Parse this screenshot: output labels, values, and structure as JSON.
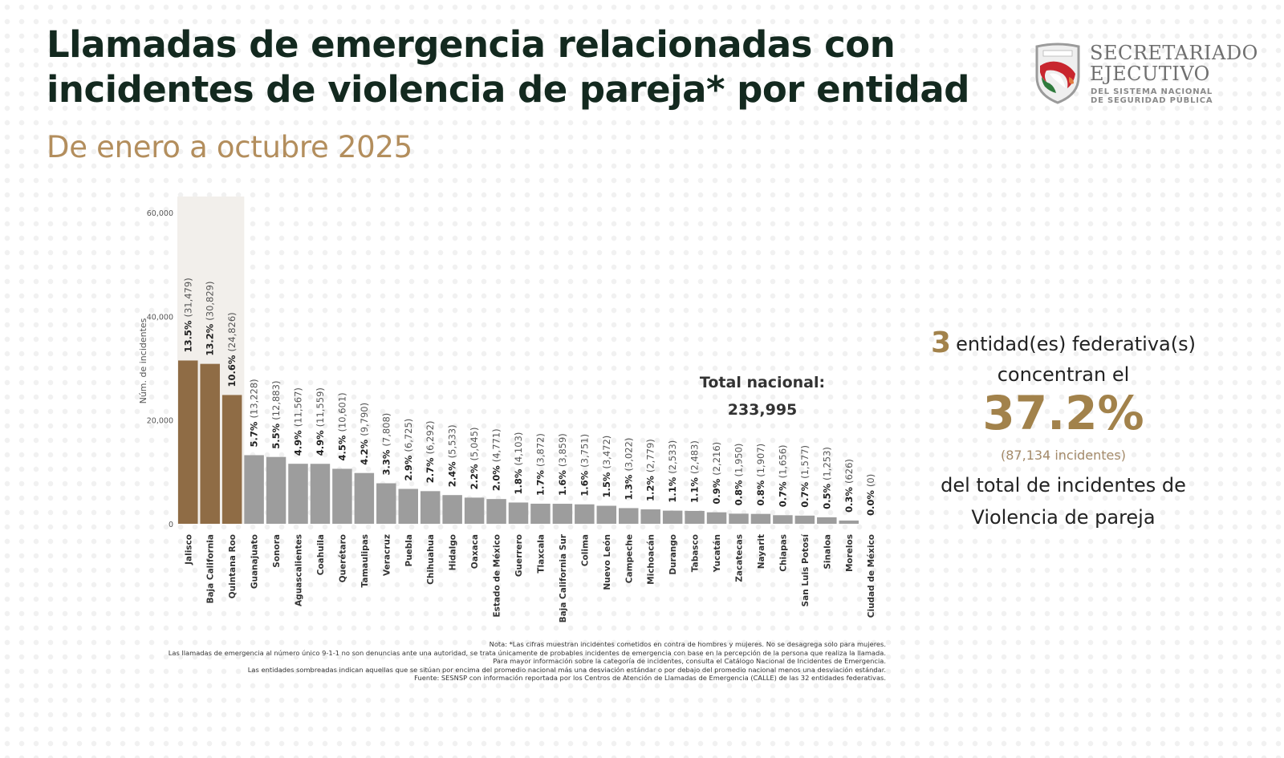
{
  "header": {
    "title_line1": "Llamadas de emergencia relacionadas  con",
    "title_line2": "incidentes de violencia de pareja* por entidad",
    "subtitle": "De enero a octubre 2025"
  },
  "logo": {
    "line1": "SECRETARIADO",
    "line2": "EJECUTIVO",
    "line3": "DEL SISTEMA NACIONAL",
    "line4": "DE SEGURIDAD PÚBLICA"
  },
  "colors": {
    "highlight_bar": "#8f6c45",
    "normal_bar": "#9d9d9d",
    "highlight_band": "#f2efeb",
    "accent": "#a2824b",
    "title": "#13291f"
  },
  "total": {
    "label": "Total nacional:",
    "value": "233,995"
  },
  "summary": {
    "count": "3",
    "line1_rest": "entidad(es)   federativa(s)",
    "line2": "concentran el",
    "percent": "37.2%",
    "incidents": "(87,134  incidentes)",
    "line4": "del  total   de incidentes   de",
    "line5": "Violencia   de pareja"
  },
  "notes": [
    "Nota: *Las cifras muestran incidentes cometidos en contra de hombres y mujeres. No se desagrega solo para mujeres.",
    "Las llamadas de emergencia al número único 9-1-1 no son denuncias ante una autoridad, se trata únicamente de probables incidentes de emergencia con base en la percepción de la persona que realiza la llamada.",
    "Para mayor información sobre la categoría de incidentes, consulta el Catálogo Nacional de Incidentes de Emergencia.",
    "Las entidades sombreadas indican aquellas que se sitúan por encima del promedio nacional más una desviación estándar o por debajo del promedio nacional menos una desviación estándar.",
    "Fuente: SESNSP con información reportada por los Centros de Atención de Llamadas de Emergencia (CALLE) de las 32 entidades federativas."
  ],
  "chart_data": {
    "type": "bar",
    "title": "Llamadas de emergencia relacionadas con incidentes de violencia de pareja* por entidad",
    "subtitle": "De enero a octubre 2025",
    "xlabel": "",
    "ylabel": "Núm. de incidentes",
    "ylim": [
      0,
      60000
    ],
    "yticks": [
      0,
      20000,
      40000,
      60000
    ],
    "ytick_labels": [
      "0",
      "20,000",
      "40,000",
      "60,000"
    ],
    "grid": false,
    "legend": "none",
    "highlighted_count": 3,
    "categories": [
      "Jalisco",
      "Baja California",
      "Quintana Roo",
      "Guanajuato",
      "Sonora",
      "Aguascalientes",
      "Coahuila",
      "Querétaro",
      "Tamaulipas",
      "Veracruz",
      "Puebla",
      "Chihuahua",
      "Hidalgo",
      "Oaxaca",
      "Estado de México",
      "Guerrero",
      "Tlaxcala",
      "Baja California Sur",
      "Colima",
      "Nuevo León",
      "Campeche",
      "Michoacán",
      "Durango",
      "Tabasco",
      "Yucatán",
      "Zacatecas",
      "Nayarit",
      "Chiapas",
      "San Luis Potosí",
      "Sinaloa",
      "Morelos",
      "Ciudad de México"
    ],
    "values": [
      31479,
      30829,
      24826,
      13228,
      12883,
      11567,
      11559,
      10601,
      9790,
      7808,
      6725,
      6292,
      5533,
      5045,
      4771,
      4103,
      3872,
      3859,
      3751,
      3472,
      3022,
      2779,
      2533,
      2483,
      2216,
      1950,
      1907,
      1656,
      1577,
      1253,
      626,
      0
    ],
    "percent_labels": [
      "13.5%",
      "13.2%",
      "10.6%",
      "5.7%",
      "5.5%",
      "4.9%",
      "4.9%",
      "4.5%",
      "4.2%",
      "3.3%",
      "2.9%",
      "2.7%",
      "2.4%",
      "2.2%",
      "2.0%",
      "1.8%",
      "1.7%",
      "1.6%",
      "1.6%",
      "1.5%",
      "1.3%",
      "1.2%",
      "1.1%",
      "1.1%",
      "0.9%",
      "0.8%",
      "0.8%",
      "0.7%",
      "0.7%",
      "0.5%",
      "0.3%",
      "0.0%"
    ],
    "value_labels": [
      "(31,479)",
      "(30,829)",
      "(24,826)",
      "(13,228)",
      "(12,883)",
      "(11,567)",
      "(11,559)",
      "(10,601)",
      "(9,790)",
      "(7,808)",
      "(6,725)",
      "(6,292)",
      "(5,533)",
      "(5,045)",
      "(4,771)",
      "(4,103)",
      "(3,872)",
      "(3,859)",
      "(3,751)",
      "(3,472)",
      "(3,022)",
      "(2,779)",
      "(2,533)",
      "(2,483)",
      "(2,216)",
      "(1,950)",
      "(1,907)",
      "(1,656)",
      "(1,577)",
      "(1,253)",
      "(626)",
      "(0)"
    ],
    "annotation": "Total nacional: 233,995"
  }
}
